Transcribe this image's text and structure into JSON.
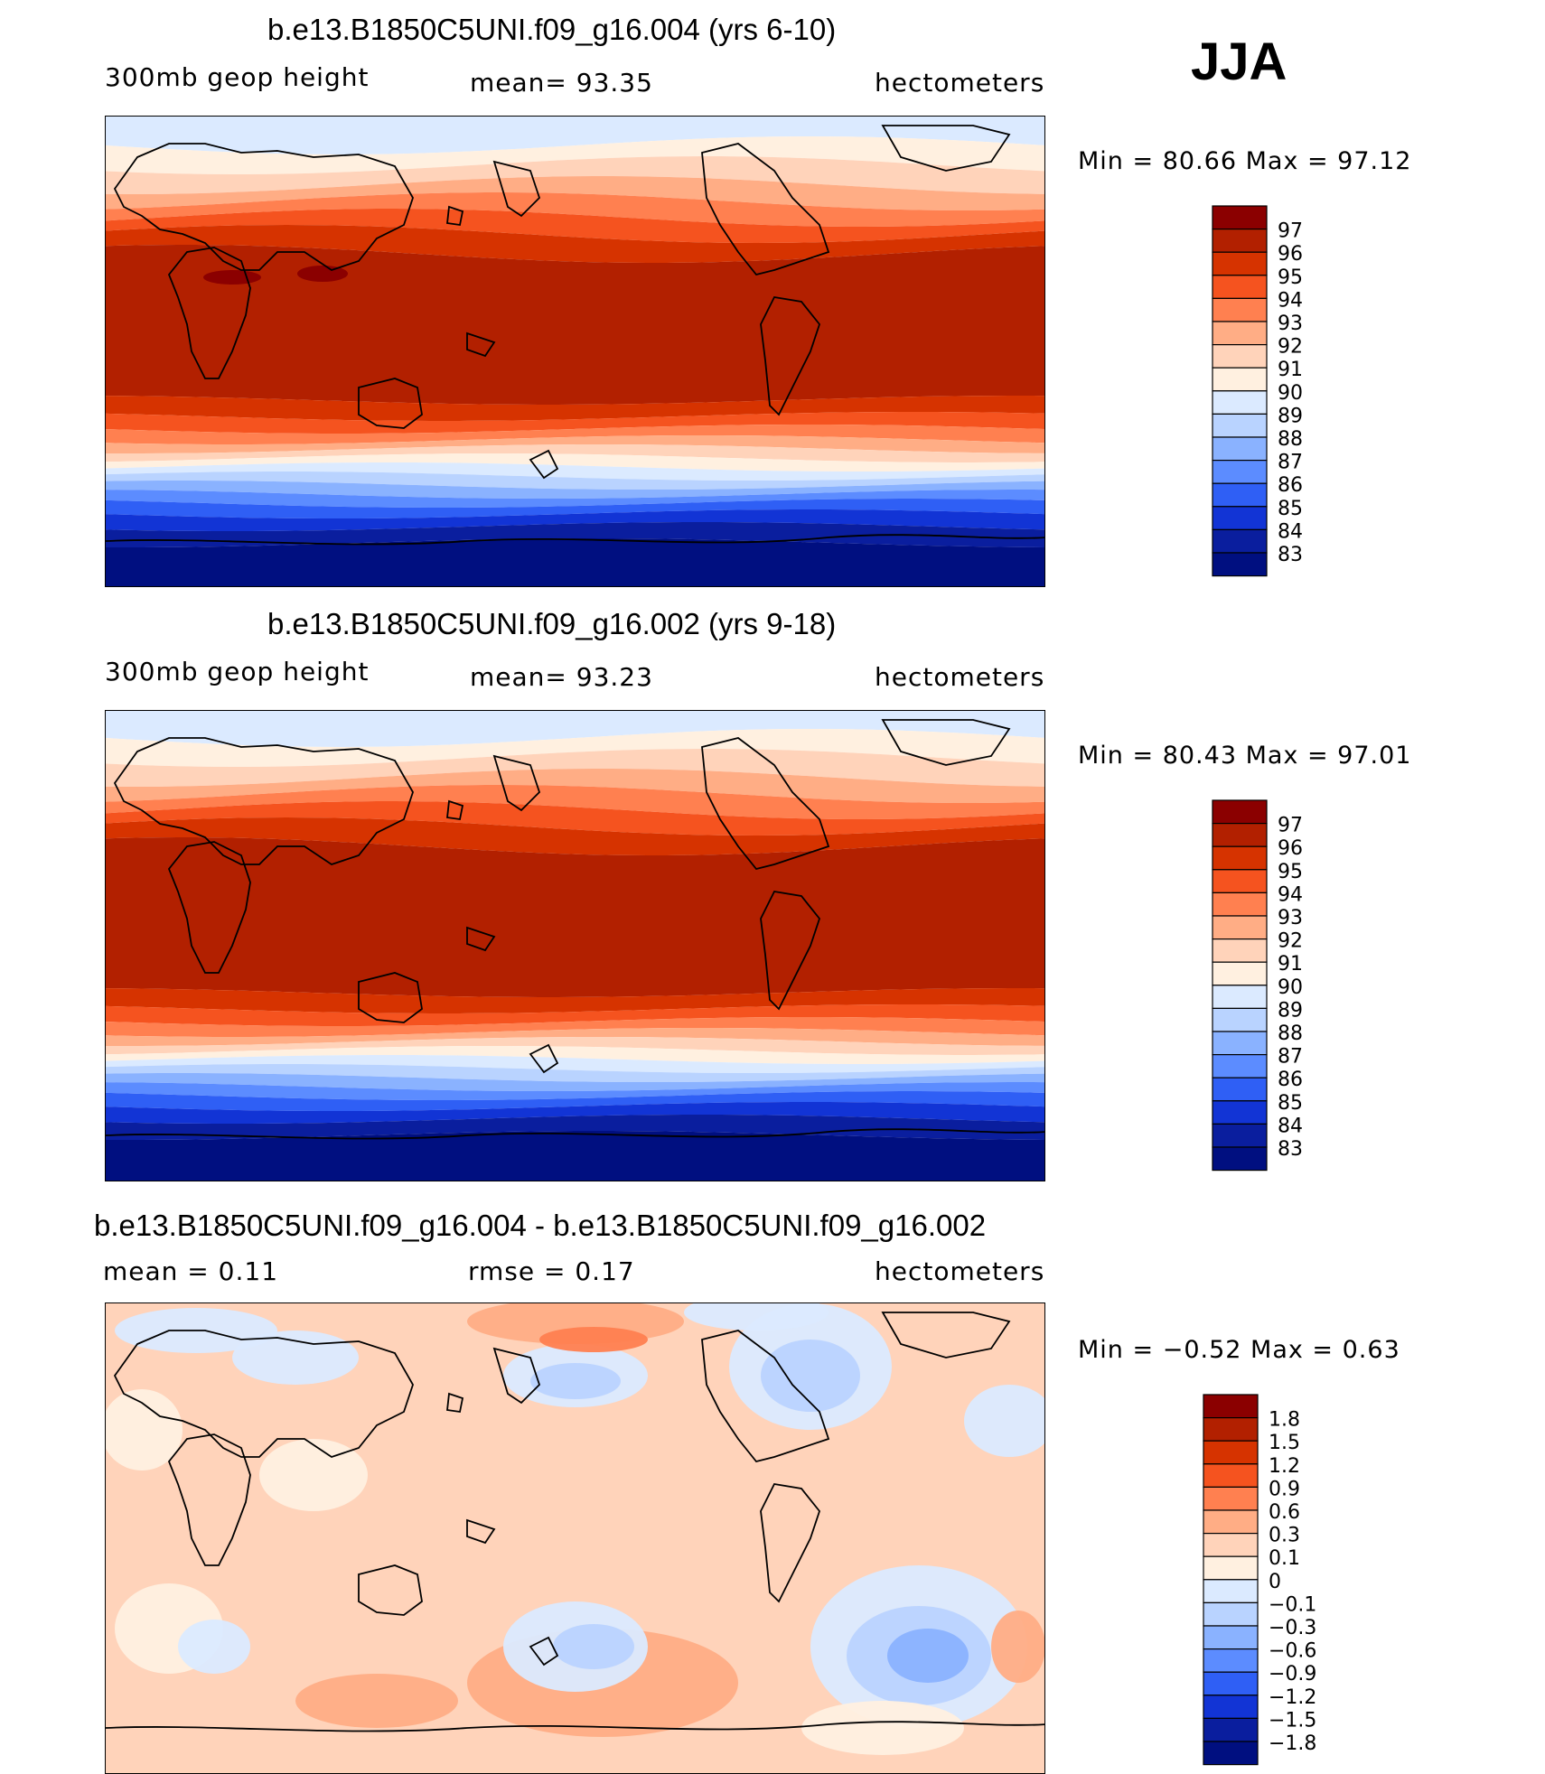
{
  "season": "JJA",
  "panels": [
    {
      "title": "b.e13.B1850C5UNI.f09_g16.004 (yrs 6-10)",
      "left_label": "300mb geop height",
      "mid_label": "mean=   93.35",
      "right_label": "hectometers",
      "minmax": "Min =   80.66 Max =   97.12"
    },
    {
      "title": "b.e13.B1850C5UNI.f09_g16.002 (yrs 9-18)",
      "left_label": "300mb geop height",
      "mid_label": "mean=   93.23",
      "right_label": "hectometers",
      "minmax": "Min =   80.43 Max =   97.01"
    },
    {
      "title": "b.e13.B1850C5UNI.f09_g16.004 - b.e13.B1850C5UNI.f09_g16.002",
      "left_label": "mean =    0.11",
      "mid_label": "rmse =    0.17",
      "right_label": "hectometers",
      "minmax": "Min =  −0.52 Max =    0.63"
    }
  ],
  "chart_data": [
    {
      "type": "heatmap",
      "title": "b.e13.B1850C5UNI.f09_g16.004 (yrs 6-10)",
      "variable": "300mb geop height",
      "units": "hectometers",
      "mean": 93.35,
      "min": 80.66,
      "max": 97.12,
      "colorbar_levels": [
        "97",
        "96",
        "95",
        "94",
        "93",
        "92",
        "91",
        "90",
        "89",
        "88",
        "87",
        "86",
        "85",
        "84",
        "83"
      ],
      "colorbar_colors": [
        "#8b0000",
        "#b22000",
        "#d63300",
        "#f5531f",
        "#ff8050",
        "#ffad85",
        "#ffd3ba",
        "#fff0e0",
        "#dbeaff",
        "#b9d3ff",
        "#8ab2ff",
        "#5c8cff",
        "#2f5ff5",
        "#1234d5",
        "#0a1e9e",
        "#000f80"
      ]
    },
    {
      "type": "heatmap",
      "title": "b.e13.B1850C5UNI.f09_g16.002 (yrs 9-18)",
      "variable": "300mb geop height",
      "units": "hectometers",
      "mean": 93.23,
      "min": 80.43,
      "max": 97.01,
      "colorbar_levels": [
        "97",
        "96",
        "95",
        "94",
        "93",
        "92",
        "91",
        "90",
        "89",
        "88",
        "87",
        "86",
        "85",
        "84",
        "83"
      ],
      "colorbar_colors": [
        "#8b0000",
        "#b22000",
        "#d63300",
        "#f5531f",
        "#ff8050",
        "#ffad85",
        "#ffd3ba",
        "#fff0e0",
        "#dbeaff",
        "#b9d3ff",
        "#8ab2ff",
        "#5c8cff",
        "#2f5ff5",
        "#1234d5",
        "#0a1e9e",
        "#000f80"
      ]
    },
    {
      "type": "heatmap",
      "title": "b.e13.B1850C5UNI.f09_g16.004 - b.e13.B1850C5UNI.f09_g16.002",
      "units": "hectometers",
      "mean": 0.11,
      "rmse": 0.17,
      "min": -0.52,
      "max": 0.63,
      "colorbar_levels": [
        "1.8",
        "1.5",
        "1.2",
        "0.9",
        "0.6",
        "0.3",
        "0.1",
        "0",
        "−0.1",
        "−0.3",
        "−0.6",
        "−0.9",
        "−1.2",
        "−1.5",
        "−1.8"
      ],
      "colorbar_colors": [
        "#8b0000",
        "#b22000",
        "#d63300",
        "#f5531f",
        "#ff8050",
        "#ffad85",
        "#ffd3ba",
        "#fff0e0",
        "#dbeaff",
        "#b9d3ff",
        "#8ab2ff",
        "#5c8cff",
        "#2f5ff5",
        "#1234d5",
        "#0a1e9e",
        "#000f80"
      ]
    }
  ]
}
